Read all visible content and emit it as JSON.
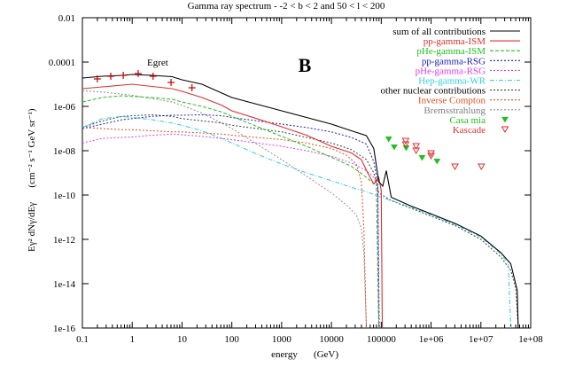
{
  "chart_data": {
    "type": "line",
    "title": "Gamma ray spectrum - -2 < b < 2 and 50 < l < 200",
    "panel_label": "B",
    "xlabel": "energy",
    "xlabel_unit": "(GeV)",
    "ylabel_main": "Eγ² dNγ/dEγ",
    "ylabel_unit": "(cm⁻² s⁻¹ GeV sr⁻¹)",
    "xscale": "log",
    "yscale": "log",
    "xlim": [
      0.1,
      100000000
    ],
    "ylim": [
      1e-16,
      0.01
    ],
    "x_ticks": [
      {
        "value": -1,
        "label": "0.1"
      },
      {
        "value": 0,
        "label": "1"
      },
      {
        "value": 1,
        "label": "10"
      },
      {
        "value": 2,
        "label": "100"
      },
      {
        "value": 3,
        "label": "1000"
      },
      {
        "value": 4,
        "label": "10000"
      },
      {
        "value": 5,
        "label": "100000"
      },
      {
        "value": 6,
        "label": "1e+06"
      },
      {
        "value": 7,
        "label": "1e+07"
      },
      {
        "value": 8,
        "label": "1e+08"
      }
    ],
    "y_ticks": [
      {
        "value": -2,
        "label": "0.01"
      },
      {
        "value": -4,
        "label": "0.0001"
      },
      {
        "value": -6,
        "label": "1e-06"
      },
      {
        "value": -8,
        "label": "1e-08"
      },
      {
        "value": -10,
        "label": "1e-10"
      },
      {
        "value": -12,
        "label": "1e-12"
      },
      {
        "value": -14,
        "label": "1e-14"
      },
      {
        "value": -16,
        "label": "1e-16"
      }
    ],
    "grid": false,
    "legend_position": "top-right",
    "series_note": "points are [log10(energy GeV), log10(flux)]",
    "series": [
      {
        "name": "sum of all contributions",
        "color": "#000000",
        "dash": "solid",
        "points": [
          [
            -1,
            -4.72
          ],
          [
            -0.6,
            -4.64
          ],
          [
            -0.2,
            -4.6
          ],
          [
            0,
            -4.56
          ],
          [
            0.4,
            -4.6
          ],
          [
            0.8,
            -4.66
          ],
          [
            1,
            -4.8
          ],
          [
            1.4,
            -5.0
          ],
          [
            1.8,
            -5.4
          ],
          [
            2,
            -5.6
          ],
          [
            2.5,
            -5.9
          ],
          [
            3,
            -6.2
          ],
          [
            3.5,
            -6.5
          ],
          [
            4,
            -6.8
          ],
          [
            4.4,
            -7.1
          ],
          [
            4.7,
            -7.32
          ],
          [
            4.85,
            -7.9
          ],
          [
            4.95,
            -9.4
          ],
          [
            5.03,
            -9.6
          ],
          [
            5.1,
            -8.9
          ],
          [
            5.2,
            -10.1
          ],
          [
            5.4,
            -10.3
          ],
          [
            5.6,
            -10.5
          ],
          [
            6,
            -10.85
          ],
          [
            6.5,
            -11.3
          ],
          [
            7,
            -11.85
          ],
          [
            7.4,
            -12.6
          ],
          [
            7.6,
            -13.1
          ],
          [
            7.73,
            -14.3
          ],
          [
            7.75,
            -16
          ]
        ]
      },
      {
        "name": "pp-gamma-ISM",
        "color": "#e03030",
        "dash": "solid",
        "points": [
          [
            -1,
            -5.2
          ],
          [
            -0.6,
            -5.12
          ],
          [
            -0.2,
            -5.04
          ],
          [
            0,
            -5.0
          ],
          [
            0.4,
            -5.1
          ],
          [
            0.8,
            -5.2
          ],
          [
            1,
            -5.32
          ],
          [
            1.4,
            -5.6
          ],
          [
            1.8,
            -5.95
          ],
          [
            2,
            -6.2
          ],
          [
            2.5,
            -6.55
          ],
          [
            3,
            -6.92
          ],
          [
            3.5,
            -7.3
          ],
          [
            4,
            -7.8
          ],
          [
            4.4,
            -8.1
          ],
          [
            4.6,
            -8.4
          ],
          [
            4.75,
            -9.1
          ],
          [
            4.85,
            -9.5
          ],
          [
            4.95,
            -9.2
          ],
          [
            5.0,
            -9.8
          ],
          [
            5.02,
            -16
          ]
        ]
      },
      {
        "name": "pHe-gamma-ISM",
        "color": "#20c020",
        "dash": "dashed",
        "points": [
          [
            -1,
            -5.8
          ],
          [
            -0.6,
            -5.6
          ],
          [
            -0.2,
            -5.52
          ],
          [
            0,
            -5.55
          ],
          [
            0.4,
            -5.6
          ],
          [
            0.8,
            -5.68
          ],
          [
            1,
            -5.8
          ],
          [
            1.4,
            -6.0
          ],
          [
            1.8,
            -6.25
          ],
          [
            2,
            -6.45
          ],
          [
            2.5,
            -6.9
          ],
          [
            3,
            -7.35
          ],
          [
            3.5,
            -7.8
          ],
          [
            4,
            -8.3
          ],
          [
            4.4,
            -8.7
          ],
          [
            4.7,
            -9.2
          ],
          [
            4.85,
            -9.5
          ],
          [
            4.9,
            -9.3
          ],
          [
            4.95,
            -16
          ]
        ]
      },
      {
        "name": "pp-gamma-RSG",
        "color": "#2020c0",
        "dash": "dotted",
        "points": [
          [
            -1,
            -7.0
          ],
          [
            -0.6,
            -6.8
          ],
          [
            -0.2,
            -6.6
          ],
          [
            0,
            -6.55
          ],
          [
            0.4,
            -6.45
          ],
          [
            0.8,
            -6.4
          ],
          [
            1,
            -6.4
          ],
          [
            1.4,
            -6.38
          ],
          [
            1.8,
            -6.42
          ],
          [
            2,
            -6.5
          ],
          [
            2.5,
            -6.65
          ],
          [
            3,
            -6.8
          ],
          [
            3.5,
            -6.95
          ],
          [
            4,
            -7.15
          ],
          [
            4.4,
            -7.4
          ],
          [
            4.7,
            -7.7
          ],
          [
            4.85,
            -8.5
          ],
          [
            4.93,
            -9.5
          ],
          [
            4.96,
            -16
          ]
        ]
      },
      {
        "name": "pHe-gamma-RSG",
        "color": "#e040e0",
        "dash": "dotted",
        "points": [
          [
            -1,
            -7.65
          ],
          [
            -0.6,
            -7.45
          ],
          [
            -0.2,
            -7.4
          ],
          [
            0,
            -7.38
          ],
          [
            0.4,
            -7.3
          ],
          [
            0.8,
            -7.25
          ],
          [
            1,
            -7.28
          ],
          [
            1.4,
            -7.35
          ],
          [
            1.8,
            -7.45
          ],
          [
            2,
            -7.5
          ],
          [
            2.5,
            -7.65
          ],
          [
            3,
            -7.8
          ],
          [
            3.5,
            -8.0
          ],
          [
            4,
            -8.25
          ],
          [
            4.4,
            -8.55
          ],
          [
            4.7,
            -8.9
          ],
          [
            4.85,
            -9.2
          ],
          [
            4.93,
            -9.6
          ],
          [
            4.95,
            -16
          ]
        ]
      },
      {
        "name": "Hep-gamma-WR",
        "color": "#30d0e0",
        "dash": "dashdot",
        "points": [
          [
            -1,
            -6.95
          ],
          [
            -0.6,
            -6.55
          ],
          [
            -0.2,
            -6.45
          ],
          [
            0,
            -6.5
          ],
          [
            0.4,
            -6.6
          ],
          [
            0.8,
            -6.75
          ],
          [
            1,
            -6.85
          ],
          [
            1.4,
            -7.1
          ],
          [
            1.8,
            -7.45
          ],
          [
            2,
            -7.65
          ],
          [
            2.5,
            -8.15
          ],
          [
            3,
            -8.6
          ],
          [
            3.5,
            -9.0
          ],
          [
            4,
            -9.35
          ],
          [
            4.4,
            -9.65
          ],
          [
            4.7,
            -9.85
          ],
          [
            5,
            -10.1
          ],
          [
            5.4,
            -10.4
          ],
          [
            5.6,
            -10.55
          ],
          [
            6,
            -10.9
          ],
          [
            6.5,
            -11.35
          ],
          [
            7,
            -11.9
          ],
          [
            7.4,
            -12.65
          ],
          [
            7.55,
            -13.1
          ],
          [
            7.6,
            -16
          ]
        ]
      },
      {
        "name": "other nuclear contributions",
        "color": "#404040",
        "dash": "dotted",
        "points": [
          [
            -1,
            -6.95
          ],
          [
            -0.6,
            -6.65
          ],
          [
            -0.2,
            -6.45
          ],
          [
            0,
            -6.42
          ],
          [
            0.4,
            -6.38
          ],
          [
            0.8,
            -6.45
          ],
          [
            1,
            -6.55
          ],
          [
            1.4,
            -6.65
          ],
          [
            1.8,
            -6.75
          ],
          [
            2,
            -6.85
          ],
          [
            2.5,
            -7.0
          ],
          [
            3,
            -7.15
          ],
          [
            3.5,
            -7.4
          ],
          [
            4,
            -7.65
          ],
          [
            4.4,
            -7.95
          ],
          [
            4.7,
            -8.4
          ],
          [
            4.85,
            -9.0
          ],
          [
            4.95,
            -9.9
          ],
          [
            5.2,
            -10.25
          ],
          [
            5.6,
            -10.6
          ],
          [
            6,
            -10.95
          ],
          [
            6.5,
            -11.4
          ],
          [
            7,
            -12.0
          ],
          [
            7.4,
            -12.8
          ],
          [
            7.6,
            -13.4
          ],
          [
            7.7,
            -14.2
          ],
          [
            7.75,
            -16
          ]
        ]
      },
      {
        "name": "Inverse Compton",
        "color": "#e05020",
        "dash": "dotted",
        "points": [
          [
            -1,
            -6.95
          ],
          [
            -0.6,
            -7.0
          ],
          [
            -0.2,
            -7.05
          ],
          [
            0,
            -7.05
          ],
          [
            0.4,
            -7.1
          ],
          [
            0.8,
            -7.15
          ],
          [
            1,
            -7.15
          ],
          [
            1.4,
            -7.2
          ],
          [
            1.8,
            -7.25
          ],
          [
            2,
            -7.3
          ],
          [
            2.5,
            -7.4
          ],
          [
            3,
            -7.5
          ],
          [
            3.5,
            -7.65
          ],
          [
            4,
            -7.9
          ],
          [
            4.3,
            -8.2
          ],
          [
            4.5,
            -8.6
          ],
          [
            4.6,
            -9.4
          ],
          [
            4.65,
            -11.5
          ],
          [
            4.7,
            -16
          ]
        ]
      },
      {
        "name": "Bremsstrahlung",
        "color": "#909090",
        "dash": "dotted",
        "points": [
          [
            -1,
            -5.3
          ],
          [
            -0.6,
            -5.35
          ],
          [
            -0.2,
            -5.45
          ],
          [
            0,
            -5.5
          ],
          [
            0.4,
            -5.65
          ],
          [
            0.8,
            -5.8
          ],
          [
            1,
            -5.95
          ],
          [
            1.4,
            -6.3
          ],
          [
            1.8,
            -6.75
          ],
          [
            2,
            -7.0
          ],
          [
            2.5,
            -7.7
          ],
          [
            3,
            -8.4
          ],
          [
            3.5,
            -9.15
          ],
          [
            4,
            -9.9
          ],
          [
            4.3,
            -10.45
          ],
          [
            4.5,
            -10.9
          ],
          [
            4.6,
            -11.5
          ],
          [
            4.65,
            -12.6
          ],
          [
            4.7,
            -16
          ]
        ]
      }
    ],
    "scatter": [
      {
        "name": "Egret",
        "color": "#c00000",
        "marker": "plus",
        "label_text": "Egret",
        "points": [
          [
            -0.7,
            -4.76
          ],
          [
            -0.43,
            -4.64
          ],
          [
            -0.18,
            -4.6
          ],
          [
            0.12,
            -4.52
          ],
          [
            0.42,
            -4.64
          ],
          [
            0.78,
            -4.92
          ],
          [
            1.2,
            -5.16
          ]
        ]
      },
      {
        "name": "Casa mia",
        "color": "#20c020",
        "marker": "filled-triangle-down",
        "points": [
          [
            5.15,
            -7.48
          ],
          [
            5.26,
            -7.84
          ],
          [
            5.5,
            -7.88
          ],
          [
            5.82,
            -8.32
          ],
          [
            6.12,
            -8.48
          ]
        ]
      },
      {
        "name": "Kascade",
        "color": "#e03030",
        "marker": "open-triangle-down",
        "points": [
          [
            5.49,
            -7.56
          ],
          [
            5.49,
            -7.72
          ],
          [
            5.7,
            -7.8
          ],
          [
            5.7,
            -8.0
          ],
          [
            6.0,
            -8.12
          ],
          [
            6.0,
            -8.24
          ],
          [
            6.48,
            -8.72
          ],
          [
            7.01,
            -8.72
          ]
        ]
      }
    ]
  }
}
